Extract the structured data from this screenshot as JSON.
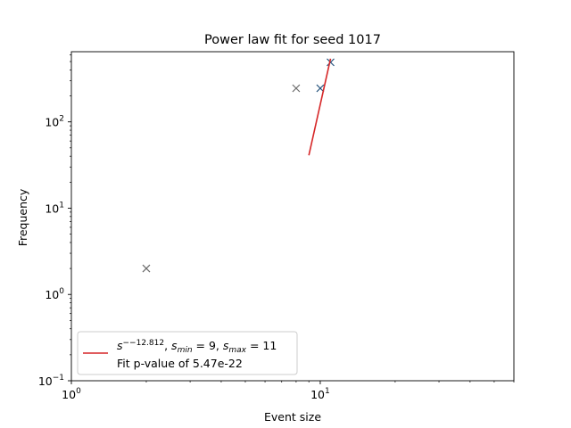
{
  "chart_data": {
    "type": "scatter",
    "title": "Power law fit for seed 1017",
    "xlabel": "Event size",
    "ylabel": "Frequency",
    "xscale": "log",
    "yscale": "log",
    "xlim": [
      1,
      60
    ],
    "ylim": [
      0.1,
      650
    ],
    "x_ticks": [
      {
        "value": 1,
        "base": "10",
        "exp": "0"
      },
      {
        "value": 10,
        "base": "10",
        "exp": "1"
      }
    ],
    "y_ticks": [
      {
        "value": 0.1,
        "base": "10",
        "exp": "−1"
      },
      {
        "value": 1,
        "base": "10",
        "exp": "0"
      },
      {
        "value": 10,
        "base": "10",
        "exp": "1"
      },
      {
        "value": 100,
        "base": "10",
        "exp": "2"
      }
    ],
    "series": [
      {
        "kind": "scatter",
        "color": "#6b6b6b",
        "points": [
          {
            "x": 2,
            "y": 2
          },
          {
            "x": 8,
            "y": 245
          }
        ]
      },
      {
        "kind": "scatter",
        "color": "#1f4e79",
        "points": [
          {
            "x": 10,
            "y": 245
          },
          {
            "x": 11,
            "y": 490
          }
        ]
      },
      {
        "kind": "line",
        "color": "#d62728",
        "points": [
          {
            "x": 9,
            "y": 41
          },
          {
            "x": 11,
            "y": 540
          }
        ]
      }
    ],
    "legend": {
      "position": "lower-left",
      "line_color": "#d62728",
      "entry1": {
        "s": "s",
        "exponent": "−−12.812",
        "sep1": ", ",
        "smin_s": "s",
        "smin_sub": "min",
        "smin_val": " = 9",
        "sep2": ", ",
        "smax_s": "s",
        "smax_sub": "max",
        "smax_val": " = 11"
      },
      "entry2": "Fit p-value of 5.47e-22"
    }
  }
}
